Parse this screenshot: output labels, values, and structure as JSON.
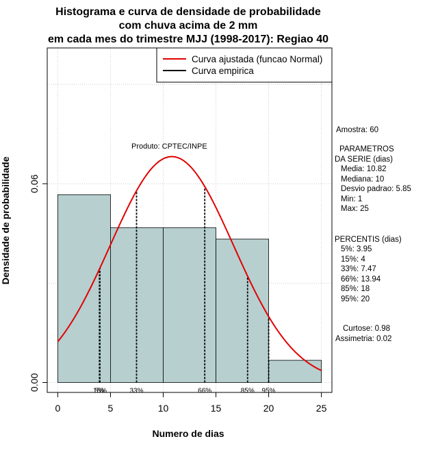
{
  "chart_data": {
    "type": "histogram",
    "title": [
      "Histograma e curva de densidade de probabilidade",
      "com chuva acima de 2 mm",
      "em cada mes do trimestre MJJ (1998-2017): Regiao 40"
    ],
    "xlabel": "Numero de dias",
    "ylabel": "Densidade de probabilidade",
    "xlim": [
      -1,
      26
    ],
    "ylim": [
      -0.003,
      0.101
    ],
    "x_ticks": [
      0,
      5,
      10,
      15,
      20,
      25
    ],
    "y_ticks": [
      0.0,
      0.06
    ],
    "y_tick_labels": [
      "0.00",
      "0.06"
    ],
    "bins": [
      {
        "from": 0,
        "to": 5,
        "density": 0.0567
      },
      {
        "from": 5,
        "to": 10,
        "density": 0.0467
      },
      {
        "from": 10,
        "to": 15,
        "density": 0.0467
      },
      {
        "from": 15,
        "to": 20,
        "density": 0.0433
      },
      {
        "from": 20,
        "to": 25,
        "density": 0.0067
      }
    ],
    "normal_fit": {
      "mean": 10.82,
      "sd": 5.85,
      "x_from": 0,
      "x_to": 25
    },
    "percentile_lines": [
      {
        "label": "5%",
        "x": 3.95
      },
      {
        "label": "15%",
        "x": 4
      },
      {
        "label": "33%",
        "x": 7.47
      },
      {
        "label": "66%",
        "x": 13.94
      },
      {
        "label": "85%",
        "x": 18
      },
      {
        "label": "95%",
        "x": 20
      }
    ],
    "grid": true,
    "legend": {
      "position": "top-right",
      "entries": [
        {
          "label": "Curva ajustada (funcao Normal)",
          "color": "#e00000"
        },
        {
          "label": "Curva empirica",
          "color": "#000000"
        }
      ]
    },
    "annotation": "Produto: CPTEC/INPE",
    "colors": {
      "bar_fill": "#b7cfcf",
      "curve": "#e00000",
      "grid": "#c0c0c0"
    }
  },
  "stats_panel": {
    "sample": "Amostra: 60",
    "params_header_1": "PARAMETROS",
    "params_header_2": "DA SERIE (dias)",
    "media": "Media: 10.82",
    "mediana": "Mediana: 10",
    "desvio": "Desvio padrao: 5.85",
    "min": "Min: 1",
    "max": "Max: 25",
    "percentis_header": "PERCENTIS (dias)",
    "p5": "5%: 3.95",
    "p15": "15%: 4",
    "p33": "33%: 7.47",
    "p66": "66%: 13.94",
    "p85": "85%: 18",
    "p95": "95%: 20",
    "curtose": "Curtose: 0.98",
    "assimetria": "Assimetria: 0.02"
  }
}
